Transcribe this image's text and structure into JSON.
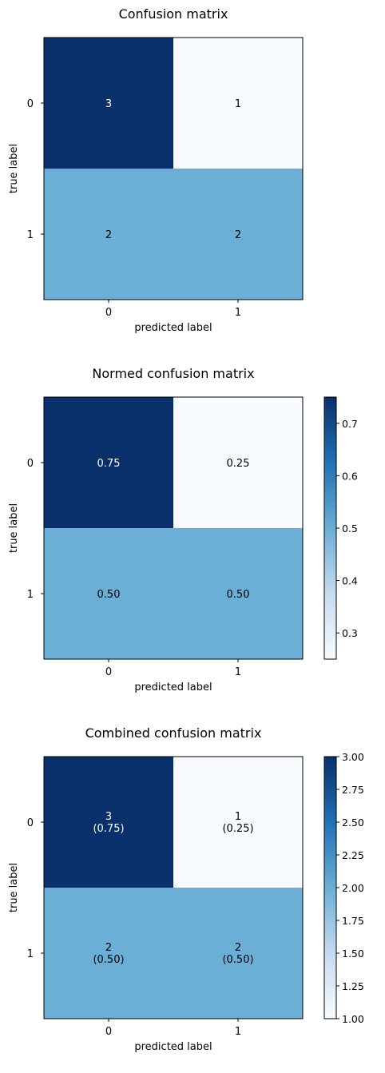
{
  "chart_data": [
    {
      "type": "heatmap",
      "title": "Confusion matrix",
      "xlabel": "predicted label",
      "ylabel": "true label",
      "x_ticks": [
        "0",
        "1"
      ],
      "y_ticks": [
        "0",
        "1"
      ],
      "values": [
        [
          3,
          1
        ],
        [
          2,
          2
        ]
      ],
      "cell_text": [
        [
          "3",
          "1"
        ],
        [
          "2",
          "2"
        ]
      ],
      "cell_text_colors": [
        [
          "#ffffff",
          "#000000"
        ],
        [
          "#000000",
          "#000000"
        ]
      ],
      "cell_colors": [
        [
          "#0a306b",
          "#f7fbff"
        ],
        [
          "#6baed6",
          "#6baed6"
        ]
      ],
      "colormap": "Blues",
      "colorbar": false
    },
    {
      "type": "heatmap",
      "title": "Normed confusion matrix",
      "xlabel": "predicted label",
      "ylabel": "true label",
      "x_ticks": [
        "0",
        "1"
      ],
      "y_ticks": [
        "0",
        "1"
      ],
      "values": [
        [
          0.75,
          0.25
        ],
        [
          0.5,
          0.5
        ]
      ],
      "cell_text": [
        [
          "0.75",
          "0.25"
        ],
        [
          "0.50",
          "0.50"
        ]
      ],
      "cell_text_colors": [
        [
          "#ffffff",
          "#000000"
        ],
        [
          "#000000",
          "#000000"
        ]
      ],
      "cell_colors": [
        [
          "#0a306b",
          "#f7fbff"
        ],
        [
          "#6baed6",
          "#6baed6"
        ]
      ],
      "colormap": "Blues",
      "colorbar": true,
      "colorbar_range": [
        0.25,
        0.75
      ],
      "colorbar_ticks": [
        "0.3",
        "0.4",
        "0.5",
        "0.6",
        "0.7"
      ],
      "colorbar_tick_values": [
        0.3,
        0.4,
        0.5,
        0.6,
        0.7
      ]
    },
    {
      "type": "heatmap",
      "title": "Combined confusion matrix",
      "xlabel": "predicted label",
      "ylabel": "true label",
      "x_ticks": [
        "0",
        "1"
      ],
      "y_ticks": [
        "0",
        "1"
      ],
      "values": [
        [
          3,
          1
        ],
        [
          2,
          2
        ]
      ],
      "normed_values": [
        [
          0.75,
          0.25
        ],
        [
          0.5,
          0.5
        ]
      ],
      "cell_text": [
        [
          "3",
          "1"
        ],
        [
          "2",
          "2"
        ]
      ],
      "cell_subtext": [
        [
          "(0.75)",
          "(0.25)"
        ],
        [
          "(0.50)",
          "(0.50)"
        ]
      ],
      "cell_text_colors": [
        [
          "#ffffff",
          "#000000"
        ],
        [
          "#000000",
          "#000000"
        ]
      ],
      "cell_colors": [
        [
          "#0a306b",
          "#f7fbff"
        ],
        [
          "#6baed6",
          "#6baed6"
        ]
      ],
      "colormap": "Blues",
      "colorbar": true,
      "colorbar_range": [
        1.0,
        3.0
      ],
      "colorbar_ticks": [
        "1.00",
        "1.25",
        "1.50",
        "1.75",
        "2.00",
        "2.25",
        "2.50",
        "2.75",
        "3.00"
      ],
      "colorbar_tick_values": [
        1.0,
        1.25,
        1.5,
        1.75,
        2.0,
        2.25,
        2.5,
        2.75,
        3.0
      ]
    }
  ]
}
